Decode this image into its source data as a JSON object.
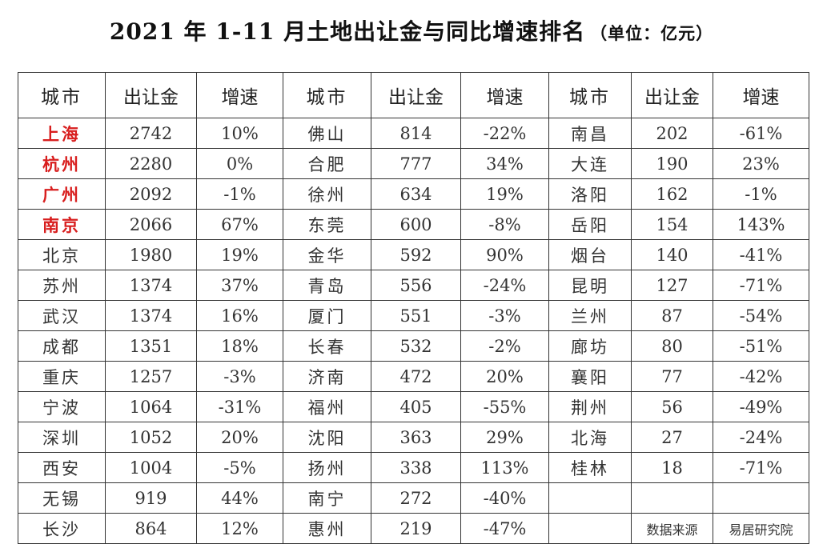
{
  "title": "2021 年 1-11 月土地出让金与同比增速排名",
  "unit": "（单位：亿元）",
  "headers": [
    "城市",
    "出让金",
    "增速",
    "城市",
    "出让金",
    "增速",
    "城市",
    "出让金",
    "增速"
  ],
  "rows": [
    [
      [
        "上海",
        "2742",
        "10%"
      ],
      [
        "佛山",
        "814",
        "-22%"
      ],
      [
        "南昌",
        "202",
        "-61%"
      ]
    ],
    [
      [
        "杭州",
        "2280",
        "0%"
      ],
      [
        "合肥",
        "777",
        "34%"
      ],
      [
        "大连",
        "190",
        "23%"
      ]
    ],
    [
      [
        "广州",
        "2092",
        "-1%"
      ],
      [
        "徐州",
        "634",
        "19%"
      ],
      [
        "洛阳",
        "162",
        "-1%"
      ]
    ],
    [
      [
        "南京",
        "2066",
        "67%"
      ],
      [
        "东莞",
        "600",
        "-8%"
      ],
      [
        "岳阳",
        "154",
        "143%"
      ]
    ],
    [
      [
        "北京",
        "1980",
        "19%"
      ],
      [
        "金华",
        "592",
        "90%"
      ],
      [
        "烟台",
        "140",
        "-41%"
      ]
    ],
    [
      [
        "苏州",
        "1374",
        "37%"
      ],
      [
        "青岛",
        "556",
        "-24%"
      ],
      [
        "昆明",
        "127",
        "-71%"
      ]
    ],
    [
      [
        "武汉",
        "1374",
        "16%"
      ],
      [
        "厦门",
        "551",
        "-3%"
      ],
      [
        "兰州",
        "87",
        "-54%"
      ]
    ],
    [
      [
        "成都",
        "1351",
        "18%"
      ],
      [
        "长春",
        "532",
        "-2%"
      ],
      [
        "廊坊",
        "80",
        "-51%"
      ]
    ],
    [
      [
        "重庆",
        "1257",
        "-3%"
      ],
      [
        "济南",
        "472",
        "20%"
      ],
      [
        "襄阳",
        "77",
        "-42%"
      ]
    ],
    [
      [
        "宁波",
        "1064",
        "-31%"
      ],
      [
        "福州",
        "405",
        "-55%"
      ],
      [
        "荆州",
        "56",
        "-49%"
      ]
    ],
    [
      [
        "深圳",
        "1052",
        "20%"
      ],
      [
        "沈阳",
        "363",
        "29%"
      ],
      [
        "北海",
        "27",
        "-24%"
      ]
    ],
    [
      [
        "西安",
        "1004",
        "-5%"
      ],
      [
        "扬州",
        "338",
        "113%"
      ],
      [
        "桂林",
        "18",
        "-71%"
      ]
    ],
    [
      [
        "无锡",
        "919",
        "44%"
      ],
      [
        "南宁",
        "272",
        "-40%"
      ],
      [
        "",
        "",
        ""
      ]
    ],
    [
      [
        "长沙",
        "864",
        "12%"
      ],
      [
        "惠州",
        "219",
        "-47%"
      ],
      [
        "",
        "数据来源",
        "易居研究院"
      ]
    ]
  ],
  "highlight_color": "#d81e1e",
  "highlighted_cities": [
    "上海",
    "杭州",
    "广州",
    "南京"
  ]
}
